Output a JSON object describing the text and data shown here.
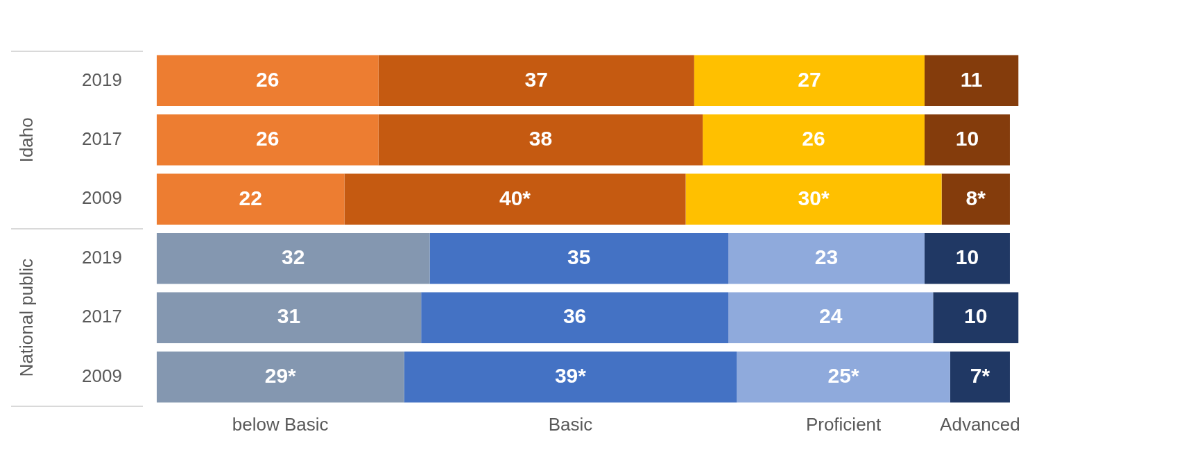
{
  "chart_data": {
    "type": "bar",
    "orientation": "horizontal",
    "stacked": true,
    "categories": [
      "2019",
      "2017",
      "2009",
      "2019",
      "2017",
      "2009"
    ],
    "annotations": [
      "Idaho",
      "National public"
    ],
    "series": [
      {
        "name": "below Basic",
        "colors": [
          "#ed7d31",
          "#ed7d31",
          "#ed7d31",
          "#8497b0",
          "#8497b0",
          "#8497b0"
        ],
        "values": [
          26,
          26,
          22,
          32,
          31,
          29
        ],
        "value_labels": [
          "26",
          "26",
          "22",
          "32",
          "31",
          "29*"
        ]
      },
      {
        "name": "Basic",
        "colors": [
          "#c55a11",
          "#c55a11",
          "#c55a11",
          "#4472c4",
          "#4472c4",
          "#4472c4"
        ],
        "values": [
          37,
          38,
          40,
          35,
          36,
          39
        ],
        "value_labels": [
          "37",
          "38",
          "40*",
          "35",
          "36",
          "39*"
        ]
      },
      {
        "name": "Proficient",
        "colors": [
          "#ffc000",
          "#ffc000",
          "#ffc000",
          "#8faadc",
          "#8faadc",
          "#8faadc"
        ],
        "values": [
          27,
          26,
          30,
          23,
          24,
          25
        ],
        "value_labels": [
          "27",
          "26",
          "30*",
          "23",
          "24",
          "25*"
        ]
      },
      {
        "name": "Advanced",
        "colors": [
          "#843c0c",
          "#843c0c",
          "#843c0c",
          "#203864",
          "#203864",
          "#203864"
        ],
        "values": [
          11,
          10,
          8,
          10,
          10,
          7
        ],
        "value_labels": [
          "11",
          "10",
          "8*",
          "10",
          "10",
          "7*"
        ]
      }
    ],
    "tick_labels": "y"
  }
}
